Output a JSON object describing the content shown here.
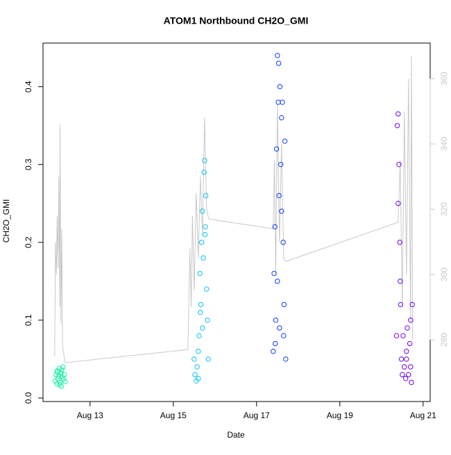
{
  "chart_data": {
    "type": "scatter",
    "title": "ATOM1 Northbound CH2O_GMI",
    "xlabel": "Date",
    "ylabel": "CH2O_GMI",
    "xlim": [
      11.87,
      21.17
    ],
    "ylim": [
      -0.0045,
      0.456
    ],
    "y2lim": [
      261.1,
      370.9
    ],
    "xticks": [
      {
        "value": 13,
        "label": "Aug 13"
      },
      {
        "value": 15,
        "label": "Aug 15"
      },
      {
        "value": 17,
        "label": "Aug 17"
      },
      {
        "value": 19,
        "label": "Aug 19"
      },
      {
        "value": 21,
        "label": "Aug 21"
      }
    ],
    "yticks": [
      {
        "value": 0,
        "label": "0.0"
      },
      0.1,
      0.2,
      0.3,
      0.4
    ],
    "y2ticks": [
      280,
      300,
      320,
      340,
      360
    ],
    "series": [
      {
        "color": "#12f0a0",
        "x": [
          12.16,
          12.18,
          12.2,
          12.21,
          12.23,
          12.25,
          12.26,
          12.28,
          12.3,
          12.31,
          12.33,
          12.35,
          12.36,
          12.38,
          12.4,
          12.22,
          12.27,
          12.32
        ],
        "values": [
          0.022,
          0.03,
          0.018,
          0.035,
          0.025,
          0.028,
          0.038,
          0.02,
          0.032,
          0.015,
          0.027,
          0.04,
          0.024,
          0.03,
          0.021,
          0.033,
          0.017,
          0.036
        ]
      },
      {
        "color": "#00c4f4",
        "x": [
          15.5,
          15.52,
          15.55,
          15.57,
          15.6,
          15.62,
          15.64,
          15.66,
          15.68,
          15.7,
          15.72,
          15.74,
          15.75,
          15.77,
          15.78,
          15.8,
          15.82,
          15.84,
          15.6,
          15.65,
          15.7,
          15.76
        ],
        "values": [
          0.05,
          0.03,
          0.022,
          0.04,
          0.025,
          0.08,
          0.16,
          0.12,
          0.2,
          0.24,
          0.18,
          0.29,
          0.305,
          0.22,
          0.26,
          0.14,
          0.1,
          0.05,
          0.06,
          0.11,
          0.09,
          0.21
        ]
      },
      {
        "color": "#0a3cff",
        "x": [
          17.4,
          17.42,
          17.44,
          17.46,
          17.48,
          17.5,
          17.52,
          17.54,
          17.56,
          17.58,
          17.6,
          17.62,
          17.64,
          17.66,
          17.68,
          17.7,
          17.45,
          17.5,
          17.55,
          17.6,
          17.65,
          17.53
        ],
        "values": [
          0.06,
          0.16,
          0.22,
          0.1,
          0.32,
          0.44,
          0.38,
          0.26,
          0.4,
          0.3,
          0.36,
          0.38,
          0.2,
          0.12,
          0.33,
          0.05,
          0.07,
          0.15,
          0.09,
          0.24,
          0.08,
          0.43
        ]
      },
      {
        "color": "#6a00ff",
        "x": [
          20.36,
          20.38,
          20.4,
          20.42,
          20.44,
          20.46,
          20.48,
          20.5,
          20.52,
          20.55,
          20.58,
          20.6,
          20.62,
          20.65,
          20.68,
          20.7,
          20.72,
          20.74,
          20.4,
          20.45,
          20.6,
          20.7
        ],
        "values": [
          0.08,
          0.35,
          0.365,
          0.3,
          0.2,
          0.12,
          0.05,
          0.03,
          0.08,
          0.04,
          0.025,
          0.06,
          0.09,
          0.03,
          0.07,
          0.1,
          0.02,
          0.12,
          0.25,
          0.15,
          0.05,
          0.04
        ]
      },
      {
        "type": "line",
        "axis": "y2",
        "color": "#c8c8c8",
        "x": [
          12.15,
          12.17,
          12.19,
          12.21,
          12.23,
          12.25,
          12.27,
          12.28,
          12.3,
          12.32,
          12.34,
          12.4,
          15.35,
          15.4,
          15.43,
          15.46,
          15.5,
          15.55,
          15.6,
          15.65,
          15.7,
          15.75,
          15.8,
          15.85,
          17.4,
          17.43,
          17.46,
          17.5,
          17.55,
          17.6,
          17.65,
          17.7,
          20.4,
          20.45,
          20.5,
          20.55,
          20.6,
          20.65,
          20.7,
          20.72,
          20.75
        ],
        "values": [
          275,
          310,
          300,
          318,
          302,
          330,
          290,
          346,
          285,
          314,
          278,
          273,
          277,
          308,
          290,
          318,
          295,
          325,
          305,
          330,
          312,
          348,
          320,
          317,
          314,
          335,
          300,
          352,
          310,
          340,
          305,
          304,
          316,
          335,
          290,
          350,
          300,
          360,
          285,
          367,
          280
        ]
      }
    ]
  }
}
